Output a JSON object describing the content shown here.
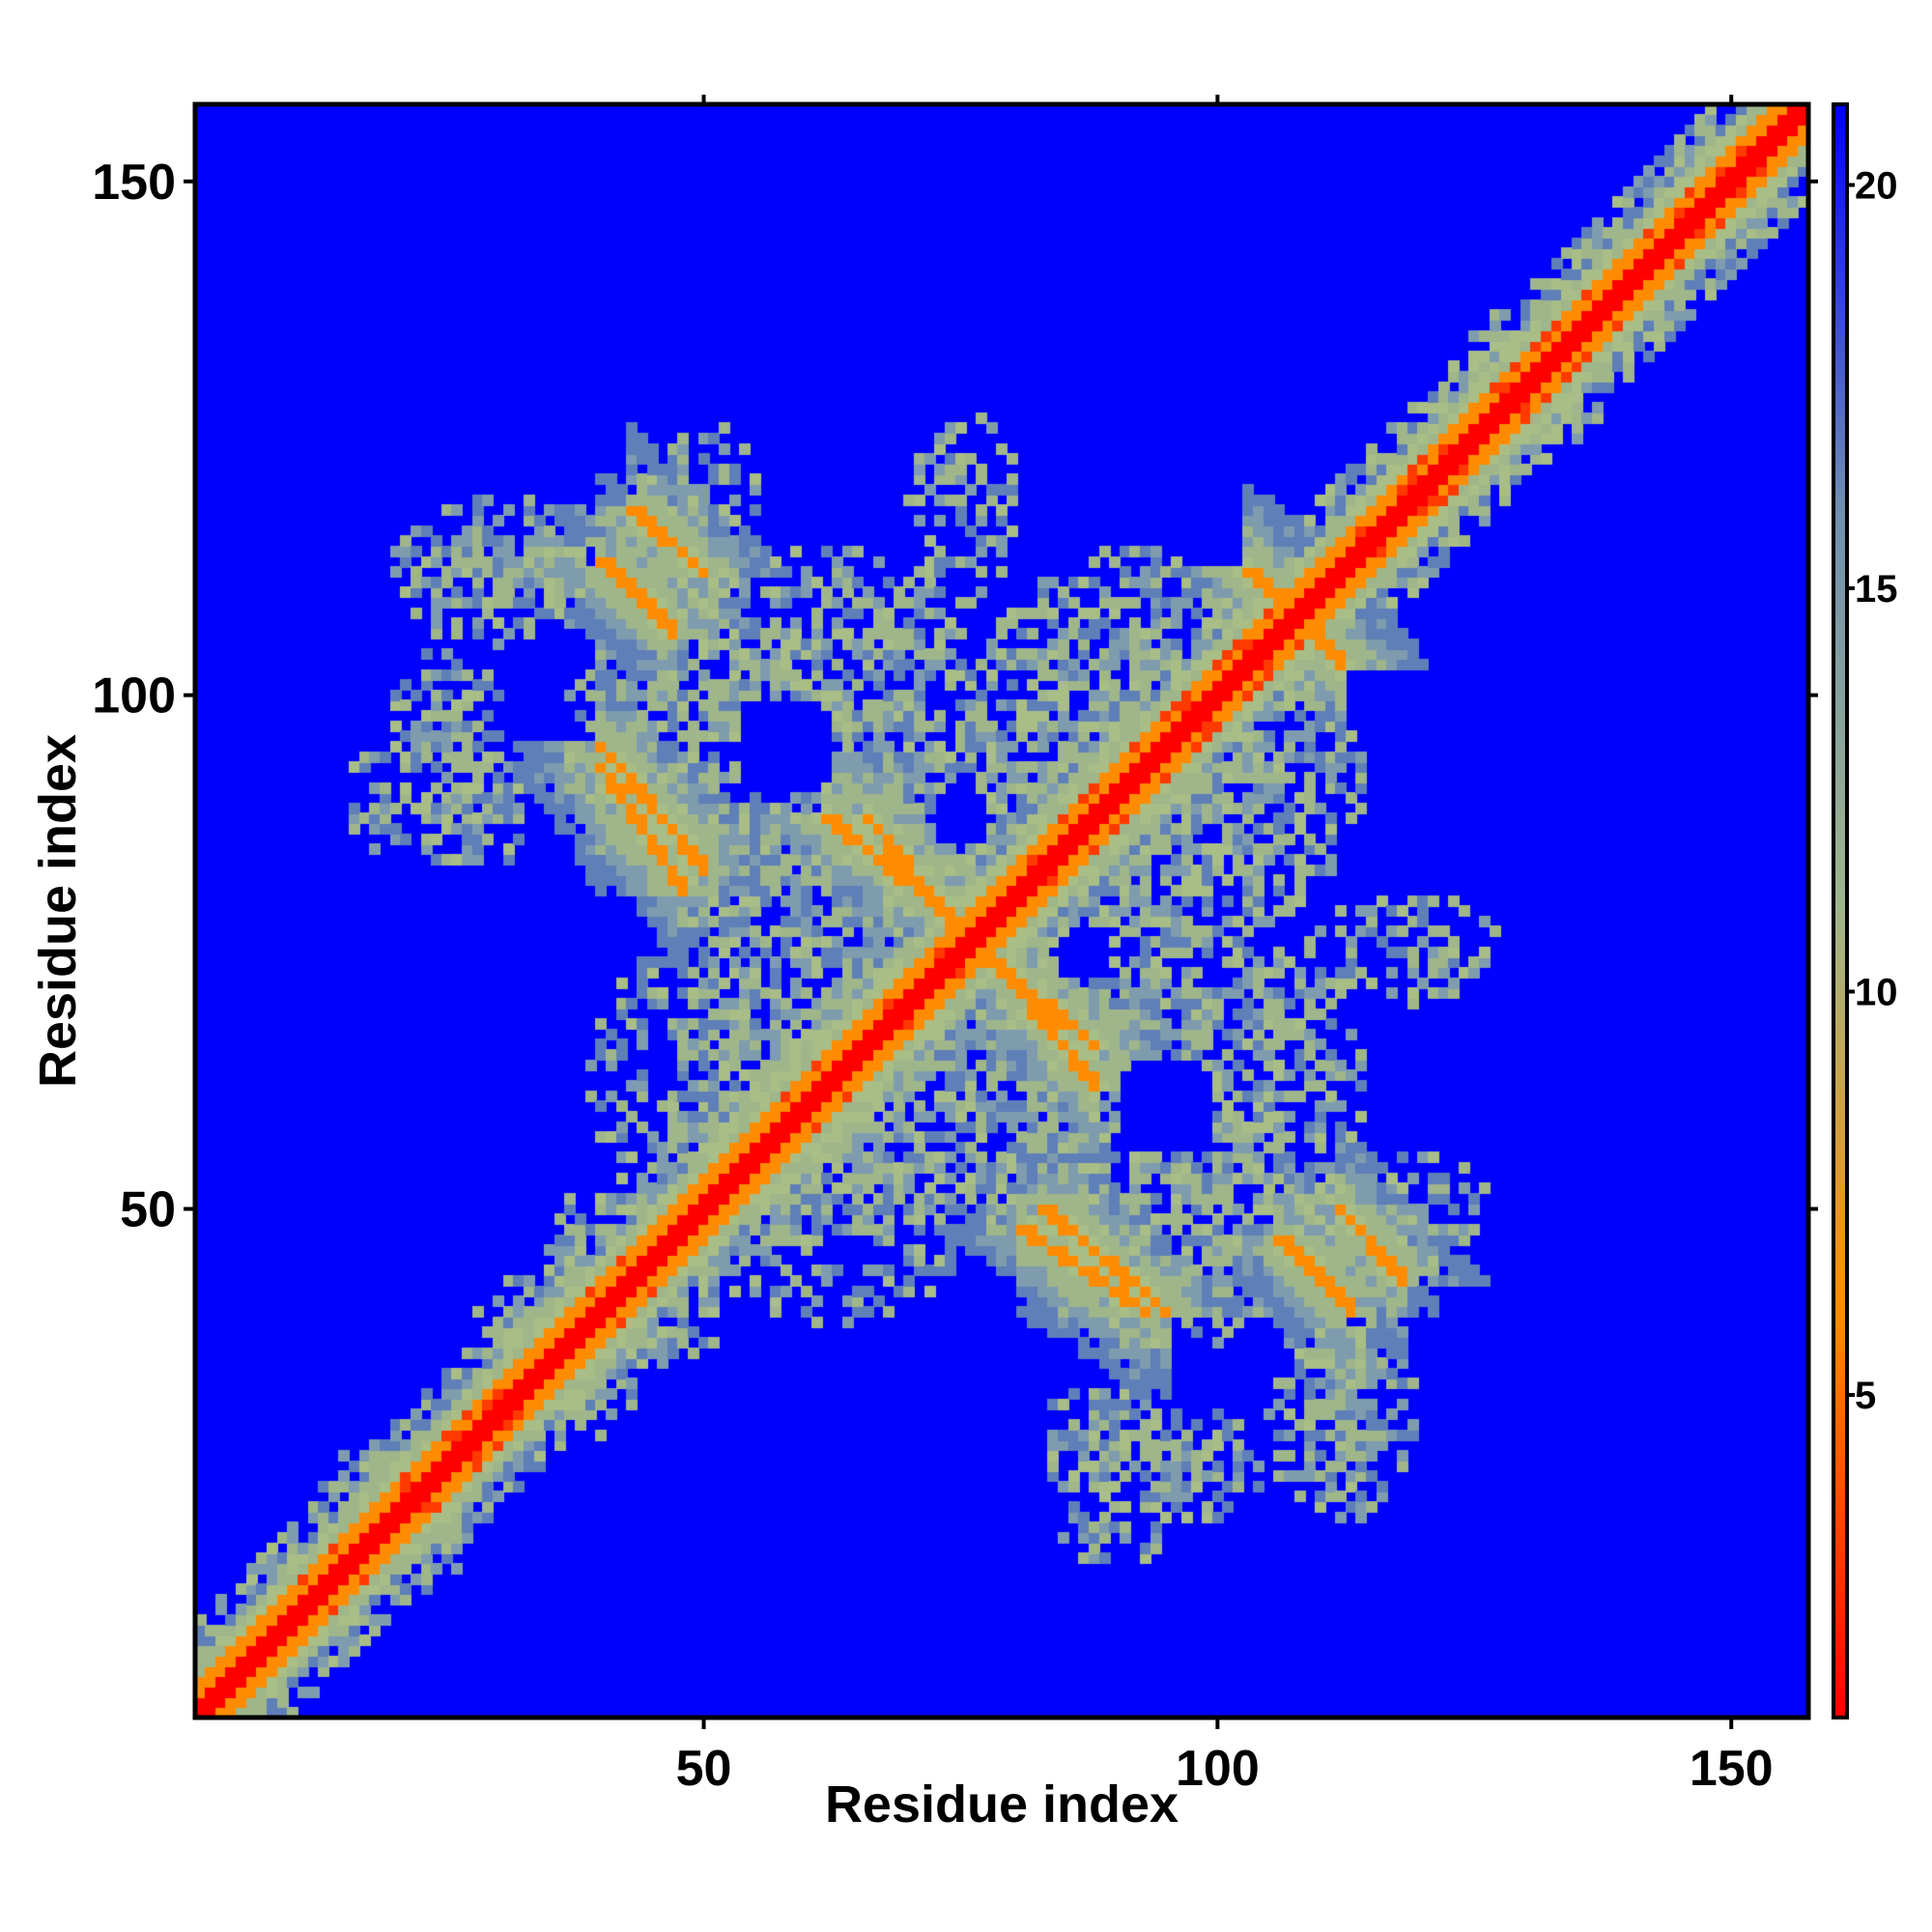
{
  "chart_data": {
    "type": "heatmap",
    "title": "",
    "xlabel": "Residue index",
    "ylabel": "Residue index",
    "xlim": [
      1,
      157
    ],
    "ylim": [
      1,
      157
    ],
    "xticks": [
      50,
      100,
      150
    ],
    "yticks": [
      50,
      100,
      150
    ],
    "n_residues": 157,
    "colorbar": {
      "min": 1,
      "max": 21,
      "ticks": [
        5,
        10,
        15,
        20
      ],
      "colors": [
        "#ff0000",
        "#ff8c00",
        "#9fb58a",
        "#6f8fb0",
        "#0000ff"
      ]
    },
    "background_color": "#0000ff",
    "description_features": {
      "diagonal_value": 1,
      "near_diagonal_value": 6,
      "contact_bands": [
        {
          "from": [
            43,
            118
          ],
          "to": [
            50,
            112
          ],
          "value": 6
        },
        {
          "from": [
            40,
            95
          ],
          "to": [
            50,
            83
          ],
          "value": 6
        },
        {
          "from": [
            62,
            88
          ],
          "to": [
            72,
            80
          ],
          "value": 6
        },
        {
          "from": [
            78,
            74
          ],
          "to": [
            88,
            66
          ],
          "value": 6
        },
        {
          "from": [
            81,
            48
          ],
          "to": [
            93,
            40
          ],
          "value": 6
        },
        {
          "from": [
            106,
            47
          ],
          "to": [
            113,
            40
          ],
          "value": 6
        },
        {
          "from": [
            103,
            112
          ],
          "to": [
            112,
            103
          ],
          "value": 6
        }
      ]
    }
  }
}
